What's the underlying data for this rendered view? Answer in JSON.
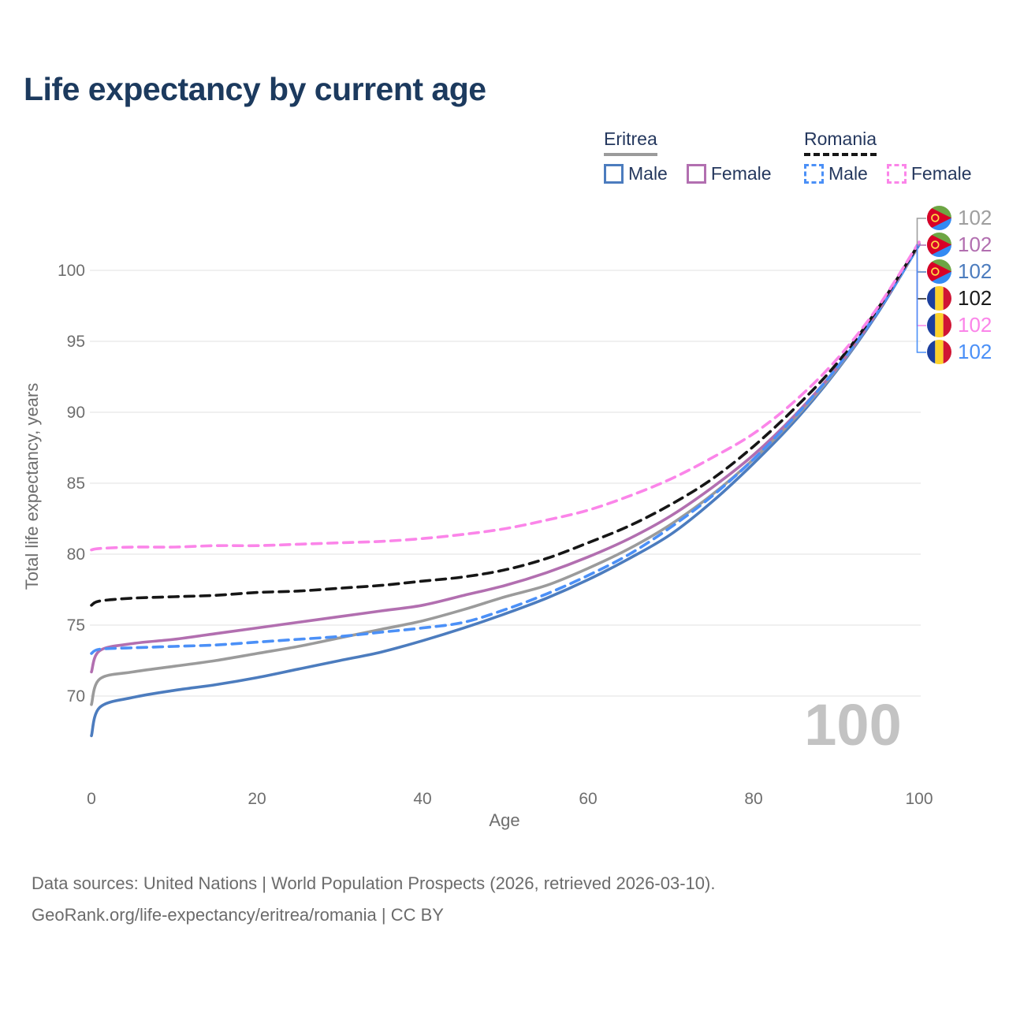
{
  "header": {
    "title": "Life expectancy by current age"
  },
  "colors": {
    "title": "#1c3a5e",
    "legend_text": "#25385e",
    "axis_text": "#6e6e6e",
    "grid": "#e8e8e8",
    "watermark": "#c3c3c3",
    "eritrea_male": "#4c7cbe",
    "eritrea_female": "#b26fb0",
    "eritrea_both": "#9b9b9b",
    "romania_male": "#4b90f7",
    "romania_female": "#fb85e9",
    "romania_both": "#161616",
    "footer_text": "#6b6b6b"
  },
  "legend": {
    "groups": [
      {
        "country": "Eritrea",
        "line_style": "solid",
        "line_color": "#9b9b9b",
        "items": [
          {
            "label": "Male",
            "color": "#4c7cbe",
            "dashed": false
          },
          {
            "label": "Female",
            "color": "#b26fb0",
            "dashed": false
          }
        ]
      },
      {
        "country": "Romania",
        "line_style": "dashed",
        "line_color": "#161616",
        "items": [
          {
            "label": "Male",
            "color": "#4b90f7",
            "dashed": true
          },
          {
            "label": "Female",
            "color": "#fb85e9",
            "dashed": true
          }
        ]
      }
    ]
  },
  "chart_data": {
    "type": "line",
    "title": "Life expectancy by current age",
    "xlabel": "Age",
    "ylabel": "Total life expectancy, years",
    "xlim": [
      0,
      100
    ],
    "ylim": [
      66,
      103
    ],
    "xticks": [
      0,
      20,
      40,
      60,
      80,
      100
    ],
    "yticks": [
      70,
      75,
      80,
      85,
      90,
      95,
      100
    ],
    "grid": true,
    "legend_position": "top-right",
    "hover_label": "100",
    "x": [
      0,
      1,
      5,
      10,
      15,
      20,
      25,
      30,
      35,
      40,
      45,
      50,
      55,
      60,
      65,
      70,
      75,
      80,
      85,
      90,
      95,
      100
    ],
    "series": [
      {
        "name": "Eritrea Male",
        "country": "eritrea",
        "color": "#4c7cbe",
        "dashed": false,
        "end_label": "102",
        "values": [
          67.2,
          69.2,
          69.9,
          70.4,
          70.8,
          71.3,
          71.9,
          72.5,
          73.1,
          73.9,
          74.8,
          75.8,
          76.9,
          78.2,
          79.7,
          81.4,
          83.7,
          86.4,
          89.4,
          92.9,
          97.0,
          101.8
        ]
      },
      {
        "name": "Eritrea Both sexes",
        "country": "eritrea",
        "color": "#9b9b9b",
        "dashed": false,
        "end_label": "102",
        "values": [
          69.4,
          71.2,
          71.7,
          72.1,
          72.5,
          73.0,
          73.5,
          74.1,
          74.7,
          75.3,
          76.1,
          77.0,
          77.8,
          79.0,
          80.4,
          82.1,
          84.2,
          86.7,
          89.6,
          93.0,
          97.1,
          101.8
        ]
      },
      {
        "name": "Eritrea Female",
        "country": "eritrea",
        "color": "#b26fb0",
        "dashed": false,
        "end_label": "102",
        "values": [
          71.7,
          73.2,
          73.7,
          74.0,
          74.4,
          74.8,
          75.2,
          75.6,
          76.0,
          76.4,
          77.1,
          77.8,
          78.7,
          79.8,
          81.1,
          82.7,
          84.7,
          87.0,
          89.8,
          93.1,
          97.1,
          101.9
        ]
      },
      {
        "name": "Romania Male",
        "country": "romania",
        "color": "#4b90f7",
        "dashed": true,
        "end_label": "102",
        "values": [
          73.0,
          73.3,
          73.4,
          73.5,
          73.6,
          73.8,
          74.0,
          74.2,
          74.5,
          74.8,
          75.2,
          76.1,
          77.2,
          78.5,
          80.0,
          81.9,
          84.1,
          86.7,
          89.7,
          93.1,
          97.1,
          101.8
        ]
      },
      {
        "name": "Romania Both sexes",
        "country": "romania",
        "color": "#161616",
        "dashed": true,
        "end_label": "102",
        "values": [
          76.4,
          76.7,
          76.9,
          77.0,
          77.1,
          77.3,
          77.4,
          77.6,
          77.8,
          78.1,
          78.4,
          78.9,
          79.7,
          80.8,
          82.0,
          83.5,
          85.3,
          87.6,
          90.3,
          93.4,
          97.3,
          101.9
        ]
      },
      {
        "name": "Romania Female",
        "country": "romania",
        "color": "#fb85e9",
        "dashed": true,
        "end_label": "102",
        "values": [
          80.3,
          80.4,
          80.5,
          80.5,
          80.6,
          80.6,
          80.7,
          80.8,
          80.9,
          81.1,
          81.4,
          81.8,
          82.4,
          83.1,
          84.1,
          85.3,
          86.8,
          88.5,
          90.8,
          93.7,
          97.4,
          102.0
        ]
      }
    ]
  },
  "right_labels": [
    {
      "flag": "eritrea",
      "value": "102",
      "color": "#9e9e9e",
      "series": "Eritrea Both sexes"
    },
    {
      "flag": "eritrea",
      "value": "102",
      "color": "#b26fb0",
      "series": "Eritrea Female"
    },
    {
      "flag": "eritrea",
      "value": "102",
      "color": "#4c7cbe",
      "series": "Eritrea Male"
    },
    {
      "flag": "romania",
      "value": "102",
      "color": "#1a1a1a",
      "series": "Romania Both sexes"
    },
    {
      "flag": "romania",
      "value": "102",
      "color": "#fb85e9",
      "series": "Romania Female"
    },
    {
      "flag": "romania",
      "value": "102",
      "color": "#4b90f7",
      "series": "Romania Male"
    }
  ],
  "flags": {
    "eritrea": {
      "green": "#6da544",
      "blue": "#338af3",
      "red": "#d80027",
      "yellow": "#ffda44"
    },
    "romania": {
      "blue": "#1c3f9e",
      "yellow": "#fcd12a",
      "red": "#d01534"
    }
  },
  "footer": {
    "line1": "Data sources: United Nations | World Population Prospects (2026, retrieved 2026-03-10).",
    "line2": "GeoRank.org/life-expectancy/eritrea/romania | CC BY"
  }
}
